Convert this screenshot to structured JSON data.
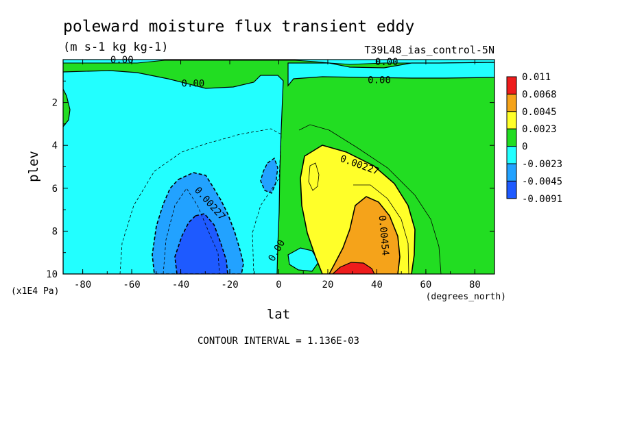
{
  "chart_data": {
    "type": "contour",
    "title": "poleward moisture flux transient eddy",
    "units": "(m s-1 kg kg-1)",
    "dataset": "T39L48_ias_control-5N",
    "xlabel": "lat",
    "xunits": "(degrees_north)",
    "ylabel": "plev",
    "yunits": "(x1E4 Pa)",
    "xlim": [
      -88,
      88
    ],
    "ylim": [
      10,
      0
    ],
    "xticks": [
      "-80",
      "-60",
      "-40",
      "-20",
      "0",
      "20",
      "40",
      "60",
      "80"
    ],
    "xtick_values": [
      -80,
      -60,
      -40,
      -20,
      0,
      20,
      40,
      60,
      80
    ],
    "yticks": [
      "2",
      "4",
      "6",
      "8",
      "10"
    ],
    "ytick_values": [
      2,
      4,
      6,
      8,
      10
    ],
    "contour_interval": "CONTOUR INTERVAL = 1.136E-03",
    "colorbar": {
      "labels": [
        "0.011",
        "0.0068",
        "0.0045",
        "0.0023",
        "0",
        "-0.0023",
        "-0.0045",
        "-0.0091"
      ],
      "colors": [
        "#ee1c1c",
        "#f5a31a",
        "#ffff29",
        "#22dd22",
        "#22ffff",
        "#22a2ff",
        "#1e5aff"
      ]
    },
    "fill_levels": [
      {
        "range": "0 to 0.0023",
        "color": "#22dd22"
      },
      {
        "range": "-0.0023 to 0",
        "color": "#22ffff"
      },
      {
        "range": "-0.0045 to -0.0023",
        "color": "#22a2ff"
      },
      {
        "range": "-0.0091 to -0.0045",
        "color": "#1e5aff"
      },
      {
        "range": "0.0023 to 0.0045",
        "color": "#ffff29"
      },
      {
        "range": "0.0045 to 0.0068",
        "color": "#f5a31a"
      },
      {
        "range": "0.0068 to 0.011",
        "color": "#ee1c1c"
      }
    ],
    "contour_labels": [
      {
        "text": "0.00",
        "lat": -64,
        "plev": 0.0
      },
      {
        "text": "0.00",
        "lat": -35,
        "plev": 1.1
      },
      {
        "text": "0.00",
        "lat": 44,
        "plev": 0.1
      },
      {
        "text": "0.00",
        "lat": 41,
        "plev": 0.95
      },
      {
        "text": "0.00227",
        "lat": 33,
        "plev": 4.9
      },
      {
        "text": "0.00227",
        "lat": -28,
        "plev": 6.7
      },
      {
        "text": "0.00454",
        "lat": 43,
        "plev": 8.2
      },
      {
        "text": "0.00",
        "lat": -1,
        "plev": 8.9
      }
    ]
  }
}
